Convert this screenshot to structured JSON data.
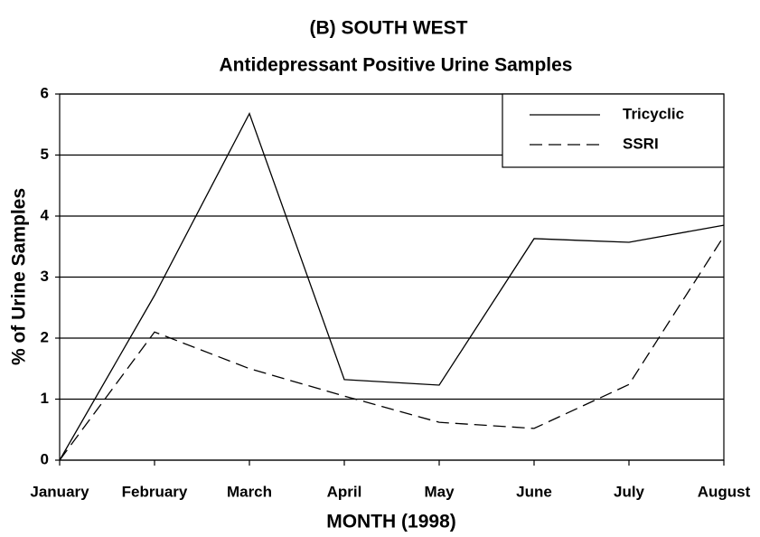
{
  "chart_data": {
    "type": "line",
    "title": "(B)  SOUTH WEST",
    "subtitle": "Antidepressant Positive Urine Samples",
    "x_label": "MONTH (1998)",
    "y_label": "% of Urine Samples",
    "categories": [
      "January",
      "February",
      "March",
      "April",
      "May",
      "June",
      "July",
      "August"
    ],
    "series": [
      {
        "name": "Tricyclic",
        "color": "#000000",
        "dash": "solid",
        "values": [
          0,
          2.7,
          5.68,
          1.32,
          1.23,
          3.63,
          3.57,
          3.85
        ]
      },
      {
        "name": "SSRI",
        "color": "#000000",
        "dash": "dashed",
        "values": [
          0,
          2.1,
          1.5,
          1.05,
          0.62,
          0.52,
          1.24,
          3.67
        ]
      }
    ],
    "ylim": [
      0,
      6
    ],
    "yticks": [
      0,
      1,
      2,
      3,
      4,
      5,
      6
    ],
    "grid": true,
    "legend": "upper right"
  }
}
